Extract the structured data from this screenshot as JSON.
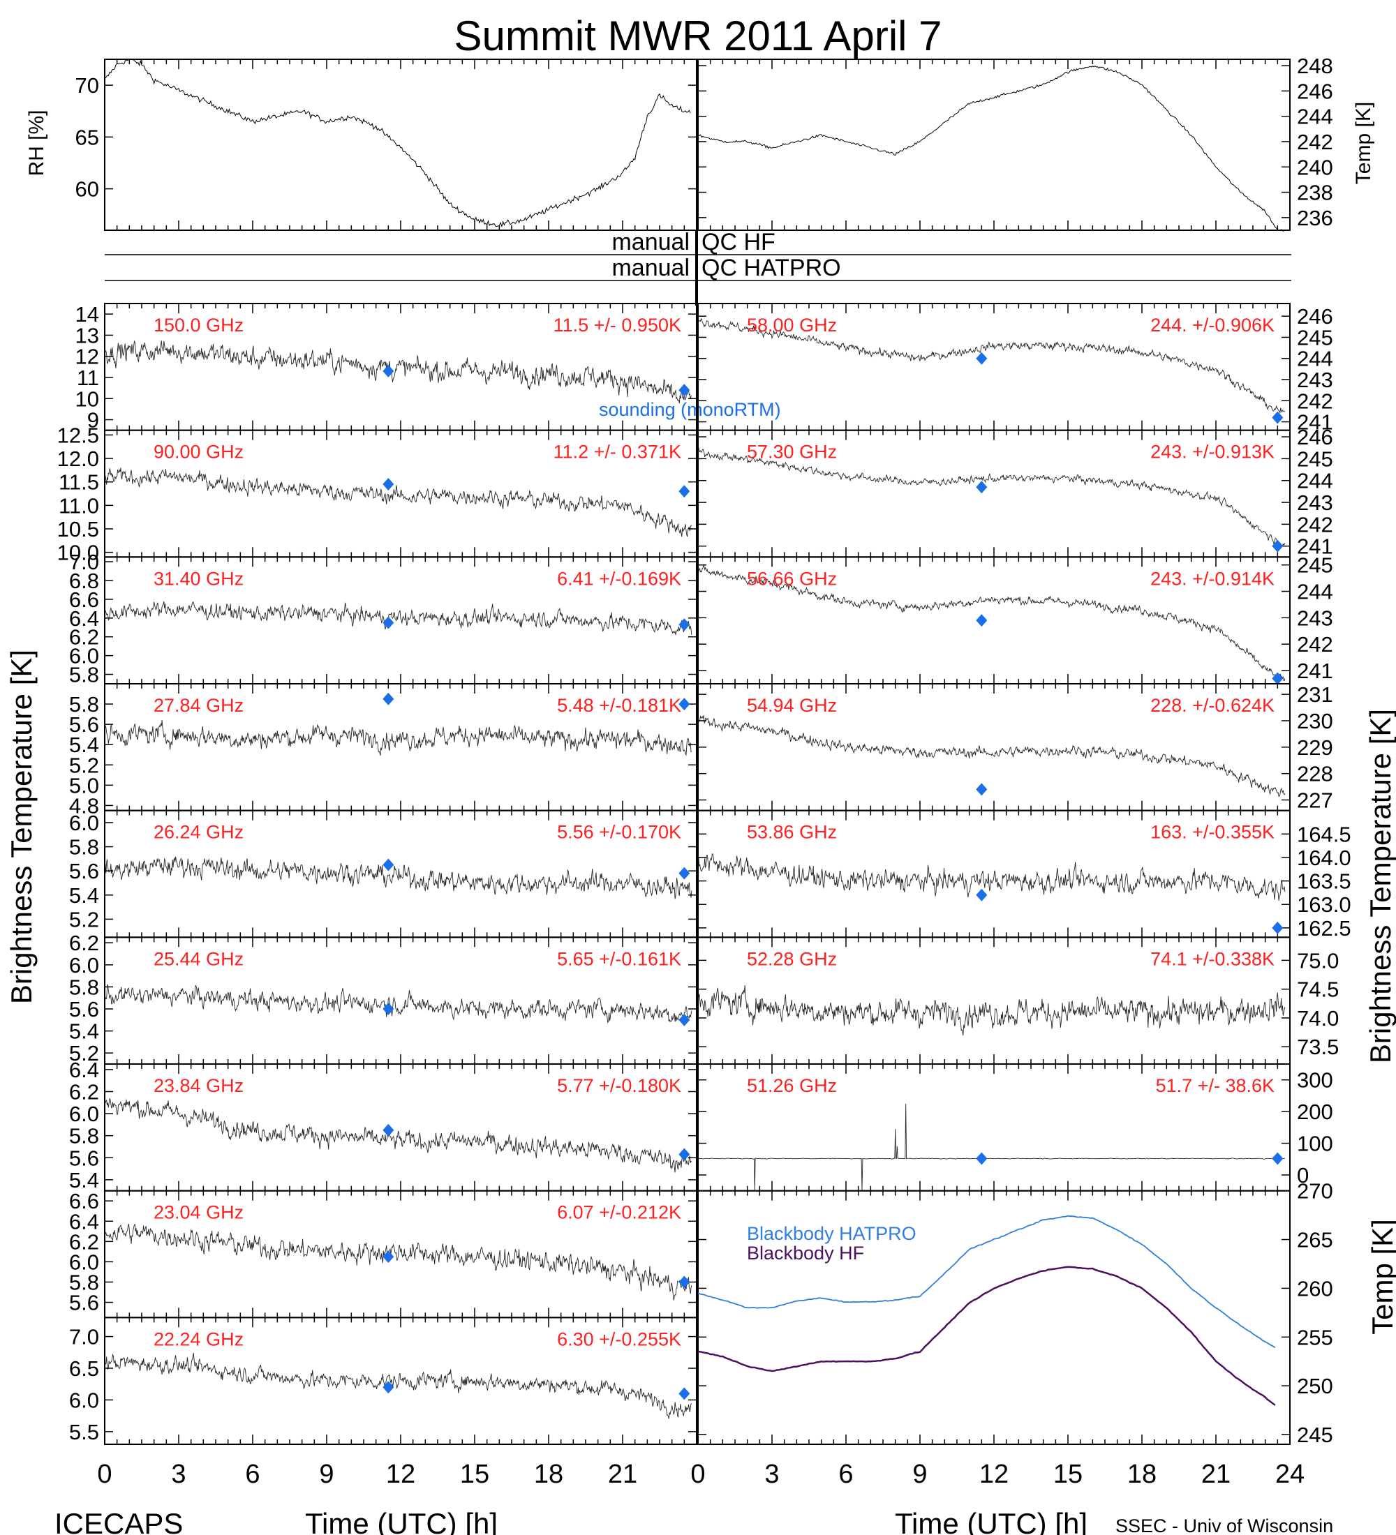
{
  "title": "Summit MWR 2011 April  7",
  "footer_left": "ICECAPS",
  "footer_right": "SSEC - Univ of Wisconsin",
  "colors": {
    "label": "#ff2020",
    "sounding": "#1a6fe8",
    "hatpro_bb": "#2f7fe0",
    "hf_bb": "#4b1060",
    "trace": "#000000"
  },
  "axes": {
    "x_label": "Time (UTC) [h]",
    "x_ticks_left": [
      "0",
      "3",
      "6",
      "9",
      "12",
      "15",
      "18",
      "21"
    ],
    "x_ticks_right": [
      "0",
      "3",
      "6",
      "9",
      "12",
      "15",
      "18",
      "21",
      "24"
    ],
    "left_ylabel": "Brightness Temperature [K]",
    "right_ylabel": "Brightness Temperature [K]",
    "right_bottom_ylabel": "Temp [K]"
  },
  "qc": {
    "left1": "manual",
    "right1": "QC HF",
    "left2": "manual",
    "right2": "QC HATPRO"
  },
  "legend": {
    "sounding": "sounding (monoRTM)",
    "hatpro": "Blackbody HATPRO",
    "hf": "Blackbody HF"
  },
  "chart_data": [
    {
      "type": "line",
      "ylabel": "RH [%]",
      "ylim": [
        56,
        72.5
      ],
      "yticks": [
        "70",
        "65",
        "60"
      ],
      "series": [
        {
          "name": "RH",
          "x": [
            0,
            0.5,
            1,
            1.5,
            2,
            3,
            4,
            5,
            6,
            7,
            8,
            9,
            10,
            11,
            12,
            13,
            14,
            15,
            16,
            17,
            18,
            19,
            20,
            21,
            21.5,
            22,
            22.5,
            23,
            23.5
          ],
          "values": [
            70.5,
            72,
            72.5,
            72,
            70.5,
            69.5,
            68.5,
            67.5,
            66.5,
            67,
            67.5,
            66.5,
            67,
            66,
            64,
            61.5,
            58.5,
            57,
            56.5,
            57,
            58,
            59,
            60,
            61.5,
            63,
            67,
            69,
            68,
            67.5
          ]
        }
      ]
    },
    {
      "type": "line",
      "ylabel": "Temp [K]",
      "ylim": [
        235,
        248.5
      ],
      "yticks": [
        "248",
        "246",
        "244",
        "242",
        "240",
        "238",
        "236"
      ],
      "series": [
        {
          "name": "Temp",
          "x": [
            0,
            1,
            2,
            3,
            4,
            5,
            6,
            7,
            8,
            9,
            10,
            11,
            12,
            13,
            14,
            15,
            16,
            17,
            18,
            19,
            20,
            21,
            22,
            23,
            23.5
          ],
          "values": [
            242.5,
            242,
            242,
            241.5,
            242,
            242.5,
            242,
            241.5,
            241,
            242,
            243.5,
            245,
            245.5,
            246,
            246.5,
            247.5,
            248,
            247.5,
            246.5,
            244.5,
            242.5,
            240,
            238,
            236.5,
            235
          ]
        }
      ]
    },
    {
      "type": "scatter",
      "label": "150.0 GHz",
      "stat": "11.5 +/- 0.950K",
      "ylim": [
        8.5,
        14.5
      ],
      "yticks": [
        "14",
        "13",
        "12",
        "11",
        "10",
        "9"
      ],
      "trend_x": [
        0,
        3,
        6,
        9,
        12,
        15,
        18,
        21,
        23.5
      ],
      "trend_y": [
        12.2,
        12.3,
        11.9,
        11.8,
        11.4,
        11.3,
        11.2,
        10.9,
        10.0
      ],
      "noise": 0.9,
      "sounding": [
        [
          11.5,
          11.3
        ],
        [
          23.5,
          10.4
        ]
      ]
    },
    {
      "type": "scatter",
      "label": "90.00 GHz",
      "stat": "11.2 +/- 0.371K",
      "ylim": [
        9.9,
        12.6
      ],
      "yticks": [
        "12.5",
        "12.0",
        "11.5",
        "11.0",
        "10.5",
        "10.0"
      ],
      "trend_x": [
        0,
        3,
        6,
        9,
        12,
        15,
        18,
        21,
        23.5
      ],
      "trend_y": [
        11.6,
        11.6,
        11.4,
        11.3,
        11.2,
        11.2,
        11.1,
        11.0,
        10.5
      ],
      "noise": 0.3,
      "sounding": [
        [
          11.5,
          11.45
        ],
        [
          23.5,
          11.3
        ]
      ]
    },
    {
      "type": "scatter",
      "label": "31.40 GHz",
      "stat": "6.41 +/-0.169K",
      "ylim": [
        5.7,
        7.05
      ],
      "yticks": [
        "7.0",
        "6.8",
        "6.6",
        "6.4",
        "6.2",
        "6.0",
        "5.8"
      ],
      "trend_x": [
        0,
        3,
        6,
        9,
        12,
        15,
        18,
        21,
        23.5
      ],
      "trend_y": [
        6.45,
        6.5,
        6.45,
        6.45,
        6.4,
        6.4,
        6.4,
        6.35,
        6.3
      ],
      "noise": 0.15,
      "sounding": [
        [
          11.5,
          6.35
        ],
        [
          23.5,
          6.33
        ]
      ]
    },
    {
      "type": "scatter",
      "label": "27.84 GHz",
      "stat": "5.48 +/-0.181K",
      "ylim": [
        4.75,
        6.0
      ],
      "yticks": [
        "5.8",
        "5.6",
        "5.4",
        "5.2",
        "5.0",
        "4.8"
      ],
      "trend_x": [
        0,
        3,
        6,
        9,
        12,
        15,
        18,
        21,
        23.5
      ],
      "trend_y": [
        5.5,
        5.5,
        5.45,
        5.5,
        5.45,
        5.5,
        5.45,
        5.45,
        5.4
      ],
      "noise": 0.17,
      "sounding": [
        [
          11.5,
          5.85
        ],
        [
          23.5,
          5.8
        ]
      ]
    },
    {
      "type": "scatter",
      "label": "26.24 GHz",
      "stat": "5.56 +/-0.170K",
      "ylim": [
        5.05,
        6.1
      ],
      "yticks": [
        "6.0",
        "5.8",
        "5.6",
        "5.4",
        "5.2"
      ],
      "trend_x": [
        0,
        3,
        6,
        9,
        12,
        15,
        18,
        21,
        23.5
      ],
      "trend_y": [
        5.6,
        5.65,
        5.6,
        5.6,
        5.55,
        5.5,
        5.5,
        5.5,
        5.45
      ],
      "noise": 0.15,
      "sounding": [
        [
          11.5,
          5.65
        ],
        [
          23.5,
          5.58
        ]
      ]
    },
    {
      "type": "scatter",
      "label": "25.44 GHz",
      "stat": "5.65 +/-0.161K",
      "ylim": [
        5.1,
        6.25
      ],
      "yticks": [
        "6.2",
        "6.0",
        "5.8",
        "5.6",
        "5.4",
        "5.2"
      ],
      "trend_x": [
        0,
        3,
        6,
        9,
        12,
        15,
        18,
        21,
        23.5
      ],
      "trend_y": [
        5.72,
        5.72,
        5.68,
        5.65,
        5.65,
        5.6,
        5.6,
        5.6,
        5.55
      ],
      "noise": 0.15,
      "sounding": [
        [
          11.5,
          5.6
        ],
        [
          23.5,
          5.5
        ]
      ]
    },
    {
      "type": "scatter",
      "label": "23.84 GHz",
      "stat": "5.77 +/-0.180K",
      "ylim": [
        5.3,
        6.45
      ],
      "yticks": [
        "6.4",
        "6.2",
        "6.0",
        "5.8",
        "5.6",
        "5.4"
      ],
      "trend_x": [
        0,
        3,
        6,
        9,
        12,
        15,
        18,
        21,
        23.5
      ],
      "trend_y": [
        6.1,
        6.0,
        5.85,
        5.8,
        5.75,
        5.75,
        5.7,
        5.65,
        5.55
      ],
      "noise": 0.15,
      "sounding": [
        [
          11.5,
          5.85
        ],
        [
          23.5,
          5.63
        ]
      ]
    },
    {
      "type": "scatter",
      "label": "23.04 GHz",
      "stat": "6.07 +/-0.212K",
      "ylim": [
        5.45,
        6.7
      ],
      "yticks": [
        "6.6",
        "6.4",
        "6.2",
        "6.0",
        "5.8",
        "5.6"
      ],
      "trend_x": [
        0,
        3,
        6,
        9,
        12,
        15,
        18,
        21,
        23.5
      ],
      "trend_y": [
        6.3,
        6.25,
        6.15,
        6.1,
        6.1,
        6.05,
        6.0,
        5.9,
        5.75
      ],
      "noise": 0.18,
      "sounding": [
        [
          11.5,
          6.05
        ],
        [
          23.5,
          5.8
        ]
      ]
    },
    {
      "type": "scatter",
      "label": "22.24 GHz",
      "stat": "6.30 +/-0.255K",
      "ylim": [
        5.3,
        7.3
      ],
      "yticks": [
        "7.0",
        "6.5",
        "6.0",
        "5.5"
      ],
      "trend_x": [
        0,
        3,
        6,
        9,
        12,
        15,
        18,
        21,
        23.5
      ],
      "trend_y": [
        6.6,
        6.55,
        6.4,
        6.3,
        6.3,
        6.3,
        6.25,
        6.15,
        5.85
      ],
      "noise": 0.22,
      "sounding": [
        [
          11.5,
          6.2
        ],
        [
          23.5,
          6.1
        ]
      ]
    },
    {
      "type": "scatter",
      "label": "58.00 GHz",
      "stat": "244. +/-0.906K",
      "ylim": [
        240.6,
        246.6
      ],
      "yticks": [
        "246",
        "245",
        "244",
        "243",
        "242",
        "241"
      ],
      "trend_x": [
        0,
        3,
        6,
        9,
        12,
        15,
        18,
        21,
        23.5
      ],
      "trend_y": [
        245.8,
        245.2,
        244.5,
        244.0,
        244.6,
        244.6,
        244.3,
        243.5,
        241.5
      ],
      "noise": 0.35,
      "sounding": [
        [
          11.5,
          244.0
        ],
        [
          23.5,
          241.2
        ]
      ]
    },
    {
      "type": "scatter",
      "label": "57.30 GHz",
      "stat": "243. +/-0.913K",
      "ylim": [
        240.5,
        246.3
      ],
      "yticks": [
        "246",
        "245",
        "244",
        "243",
        "242",
        "241"
      ],
      "trend_x": [
        0,
        3,
        6,
        9,
        12,
        15,
        18,
        21,
        23.5
      ],
      "trend_y": [
        245.3,
        244.8,
        244.2,
        243.9,
        244.1,
        244.1,
        243.8,
        243.2,
        241.2
      ],
      "noise": 0.3,
      "sounding": [
        [
          11.5,
          243.7
        ],
        [
          23.5,
          241.0
        ]
      ]
    },
    {
      "type": "scatter",
      "label": "56.66 GHz",
      "stat": "243. +/-0.914K",
      "ylim": [
        240.5,
        245.3
      ],
      "yticks": [
        "245",
        "244",
        "243",
        "242",
        "241"
      ],
      "trend_x": [
        0,
        3,
        6,
        9,
        12,
        15,
        18,
        21,
        23.5
      ],
      "trend_y": [
        244.8,
        244.3,
        243.6,
        243.4,
        243.7,
        243.6,
        243.3,
        242.6,
        240.7
      ],
      "noise": 0.28,
      "sounding": [
        [
          11.5,
          242.9
        ],
        [
          23.5,
          240.7
        ]
      ]
    },
    {
      "type": "scatter",
      "label": "54.94 GHz",
      "stat": "228. +/-0.624K",
      "ylim": [
        226.6,
        231.4
      ],
      "yticks": [
        "231",
        "230",
        "229",
        "228",
        "227"
      ],
      "trend_x": [
        0,
        3,
        6,
        9,
        12,
        15,
        18,
        21,
        23.5
      ],
      "trend_y": [
        230.0,
        229.6,
        229.0,
        228.8,
        228.8,
        228.9,
        228.7,
        228.3,
        227.3
      ],
      "noise": 0.35,
      "sounding": [
        [
          11.5,
          227.4
        ]
      ]
    },
    {
      "type": "scatter",
      "label": "53.86 GHz",
      "stat": "163. +/-0.355K",
      "ylim": [
        162.3,
        165.0
      ],
      "yticks": [
        "164.5",
        "164.0",
        "163.5",
        "163.0",
        "162.5"
      ],
      "trend_x": [
        0,
        3,
        6,
        9,
        12,
        15,
        18,
        21,
        23.5
      ],
      "trend_y": [
        163.9,
        163.7,
        163.5,
        163.5,
        163.5,
        163.5,
        163.5,
        163.5,
        163.3
      ],
      "noise": 0.4,
      "sounding": [
        [
          11.5,
          163.2
        ],
        [
          23.5,
          162.5
        ]
      ]
    },
    {
      "type": "scatter",
      "label": "52.28 GHz",
      "stat": "74.1 +/-0.338K",
      "ylim": [
        73.2,
        75.4
      ],
      "yticks": [
        "75.0",
        "74.5",
        "74.0",
        "73.5"
      ],
      "trend_x": [
        0,
        3,
        6,
        9,
        12,
        15,
        18,
        21,
        23.5
      ],
      "trend_y": [
        74.3,
        74.2,
        74.1,
        74.1,
        74.1,
        74.1,
        74.1,
        74.1,
        74.2
      ],
      "noise": 0.4,
      "sounding": []
    },
    {
      "type": "scatter",
      "label": "51.26 GHz",
      "stat": "51.7 +/- 38.6K",
      "ylim": [
        -50,
        350
      ],
      "yticks": [
        "300",
        "200",
        "100",
        "0"
      ],
      "trend_x": [
        0,
        23.5
      ],
      "trend_y": [
        51.7,
        51.7
      ],
      "noise": 2,
      "sounding": [
        [
          11.5,
          51.7
        ],
        [
          23.5,
          51.7
        ]
      ]
    },
    {
      "type": "line",
      "ylabel": "Temp [K]",
      "ylim": [
        244,
        270
      ],
      "yticks": [
        "270",
        "265",
        "260",
        "255",
        "250",
        "245"
      ],
      "series": [
        {
          "name": "Blackbody HATPRO",
          "x": [
            0,
            1,
            2,
            3,
            4,
            5,
            6,
            7,
            8,
            9,
            10,
            11,
            12,
            13,
            14,
            15,
            16,
            17,
            18,
            19,
            20,
            21,
            22,
            23,
            23.5
          ],
          "values": [
            259.5,
            258.8,
            258.0,
            258.0,
            258.7,
            259.0,
            258.6,
            258.6,
            258.8,
            259.2,
            261.5,
            264.0,
            265.0,
            266.0,
            267.0,
            267.4,
            267.2,
            266.0,
            264.5,
            262.5,
            260.0,
            258.0,
            256.2,
            254.5,
            253.8
          ]
        },
        {
          "name": "Blackbody HF",
          "x": [
            0,
            1,
            2,
            3,
            4,
            5,
            6,
            7,
            8,
            9,
            10,
            11,
            12,
            13,
            14,
            15,
            16,
            17,
            18,
            19,
            20,
            21,
            22,
            23,
            23.5
          ],
          "values": [
            253.5,
            253.0,
            252.0,
            251.5,
            252.0,
            252.5,
            252.5,
            252.5,
            252.8,
            253.5,
            256.0,
            258.5,
            260.0,
            261.0,
            261.8,
            262.2,
            262.0,
            261.2,
            260.0,
            258.0,
            255.5,
            252.5,
            250.5,
            248.8,
            247.8
          ]
        }
      ]
    }
  ]
}
